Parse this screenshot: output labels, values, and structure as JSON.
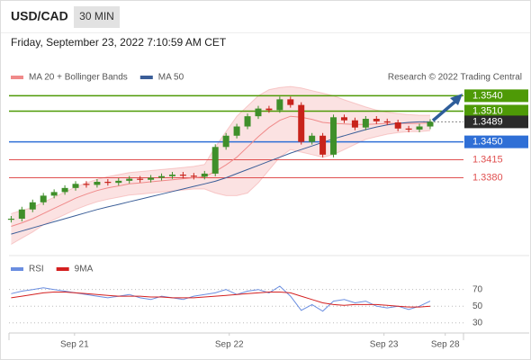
{
  "header": {
    "symbol": "USD/CAD",
    "interval": "30 MIN",
    "timestamp": "Friday, September 23, 2022 7:10:59 AM CET"
  },
  "chart_data": [
    {
      "type": "candlestick",
      "credit": "Research © 2022 Trading Central",
      "ylim": [
        1.3235,
        1.356
      ],
      "xlim": [
        -0.2,
        42.1
      ],
      "up_color": "#3f8f2a",
      "down_color": "#c8231b",
      "close": [
        1.33,
        1.3318,
        1.3332,
        1.3345,
        1.3352,
        1.336,
        1.3368,
        1.3366,
        1.3372,
        1.337,
        1.3374,
        1.3378,
        1.3376,
        1.338,
        1.3383,
        1.3386,
        1.3384,
        1.3382,
        1.3388,
        1.344,
        1.3462,
        1.348,
        1.35,
        1.3515,
        1.3512,
        1.3533,
        1.3522,
        1.345,
        1.3462,
        1.3425,
        1.3498,
        1.3492,
        1.3478,
        1.3495,
        1.349,
        1.3488,
        1.3476,
        1.3474,
        1.348,
        1.3489
      ],
      "series": [
        {
          "name": "MA 20 + Bollinger Bands",
          "color": "#f08a8a",
          "values": [
            1.3285,
            1.3292,
            1.33,
            1.331,
            1.332,
            1.333,
            1.334,
            1.3348,
            1.3355,
            1.336,
            1.3364,
            1.3368,
            1.337,
            1.3372,
            1.3374,
            1.3376,
            1.3378,
            1.338,
            1.3382,
            1.3392,
            1.3405,
            1.342,
            1.344,
            1.346,
            1.3478,
            1.3492,
            1.35,
            1.3498,
            1.3494,
            1.3488,
            1.3486,
            1.3485,
            1.3484,
            1.3484,
            1.3485,
            1.3486,
            1.3486,
            1.3486,
            1.3486,
            1.3487
          ],
          "upper": [
            1.331,
            1.3316,
            1.3322,
            1.3332,
            1.3342,
            1.3352,
            1.3362,
            1.337,
            1.3377,
            1.3382,
            1.3386,
            1.339,
            1.3392,
            1.3394,
            1.3396,
            1.3398,
            1.34,
            1.3402,
            1.3406,
            1.344,
            1.347,
            1.35,
            1.352,
            1.354,
            1.3552,
            1.3556,
            1.3558,
            1.3555,
            1.355,
            1.3545,
            1.354,
            1.3532,
            1.3525,
            1.3518,
            1.3512,
            1.3508,
            1.3505,
            1.3503,
            1.3502,
            1.3502
          ],
          "lower": [
            1.325,
            1.3262,
            1.3274,
            1.3288,
            1.3298,
            1.3308,
            1.3318,
            1.3326,
            1.3333,
            1.3338,
            1.3342,
            1.3346,
            1.3348,
            1.335,
            1.3352,
            1.3354,
            1.3356,
            1.3358,
            1.3358,
            1.335,
            1.3345,
            1.3345,
            1.335,
            1.337,
            1.3395,
            1.342,
            1.3435,
            1.343,
            1.3425,
            1.342,
            1.3425,
            1.3435,
            1.3445,
            1.3455,
            1.346,
            1.3465,
            1.3468,
            1.347,
            1.347,
            1.3472
          ]
        },
        {
          "name": "MA 50",
          "color": "#3b5e98",
          "values": [
            1.327,
            1.3276,
            1.3282,
            1.3288,
            1.3294,
            1.33,
            1.3306,
            1.3312,
            1.3318,
            1.3323,
            1.3328,
            1.3333,
            1.3338,
            1.3343,
            1.3348,
            1.3353,
            1.3358,
            1.3363,
            1.3368,
            1.3373,
            1.338,
            1.3388,
            1.3396,
            1.3404,
            1.3412,
            1.342,
            1.3428,
            1.3435,
            1.3442,
            1.3449,
            1.3456,
            1.3462,
            1.3468,
            1.3474,
            1.3479,
            1.3483,
            1.3486,
            1.3488,
            1.3489,
            1.3489
          ]
        }
      ],
      "levels": [
        {
          "value": 1.354,
          "label": "1.3540",
          "color": "#4e9a06",
          "boxed": true,
          "line": "solid"
        },
        {
          "value": 1.351,
          "label": "1.3510",
          "color": "#4e9a06",
          "boxed": true,
          "line": "solid"
        },
        {
          "value": 1.3489,
          "label": "1.3489",
          "color": "#2b2b2b",
          "boxed": true,
          "line": "dotted"
        },
        {
          "value": 1.345,
          "label": "1.3450",
          "color": "#2f6fd6",
          "boxed": true,
          "line": "solid"
        },
        {
          "value": 1.3415,
          "label": "1.3415",
          "color": "#e05050",
          "boxed": false,
          "line": "solid"
        },
        {
          "value": 1.338,
          "label": "1.3380",
          "color": "#e05050",
          "boxed": false,
          "line": "solid"
        }
      ]
    },
    {
      "type": "line",
      "ylim": [
        20,
        88
      ],
      "yticks": [
        70,
        50,
        30
      ],
      "xlim": [
        -0.2,
        42.1
      ],
      "xticks": [
        {
          "value": 5.9,
          "label": "Sep 21"
        },
        {
          "value": 20.3,
          "label": "Sep 22"
        },
        {
          "value": 34.7,
          "label": "Sep 23"
        },
        {
          "value": 40.4,
          "label": "Sep 28"
        }
      ],
      "series": [
        {
          "name": "RSI",
          "color": "#6a8ee0",
          "values": [
            65,
            68,
            70,
            72,
            70,
            68,
            66,
            64,
            62,
            60,
            62,
            64,
            60,
            58,
            62,
            60,
            58,
            62,
            64,
            66,
            70,
            64,
            68,
            70,
            66,
            74,
            62,
            45,
            52,
            44,
            56,
            58,
            54,
            56,
            50,
            48,
            50,
            46,
            50,
            56
          ]
        },
        {
          "name": "9MA",
          "color": "#d42020",
          "values": [
            60,
            62,
            64,
            66,
            67,
            67,
            66,
            65,
            64,
            63,
            62,
            62,
            62,
            61,
            61,
            60,
            60,
            60,
            61,
            62,
            63,
            64,
            65,
            66,
            67,
            67,
            66,
            62,
            58,
            54,
            52,
            51,
            52,
            52,
            52,
            51,
            50,
            49,
            49,
            50
          ]
        }
      ]
    }
  ]
}
